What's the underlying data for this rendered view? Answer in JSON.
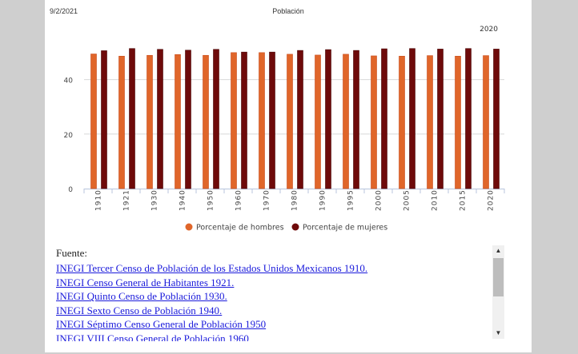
{
  "header": {
    "date": "9/2/2021",
    "title": "Población"
  },
  "chart_data": {
    "type": "bar",
    "title": "Población",
    "annotation": "2020",
    "categories": [
      "1910",
      "1921",
      "1930",
      "1940",
      "1950",
      "1960",
      "1970",
      "1980",
      "1990",
      "1995",
      "2000",
      "2005",
      "2010",
      "2015",
      "2020"
    ],
    "series": [
      {
        "name": "Porcentaje de hombres",
        "color": "#e0662a",
        "values": [
          49.4,
          48.6,
          48.9,
          49.2,
          48.9,
          49.9,
          49.9,
          49.3,
          49.0,
          49.3,
          48.7,
          48.6,
          48.8,
          48.6,
          48.8
        ]
      },
      {
        "name": "Porcentaje de mujeres",
        "color": "#6e0a0a",
        "values": [
          50.6,
          51.4,
          51.1,
          50.8,
          51.1,
          50.1,
          50.1,
          50.7,
          51.0,
          50.7,
          51.3,
          51.4,
          51.2,
          51.4,
          51.2
        ]
      }
    ],
    "yticks": [
      0,
      20,
      40
    ],
    "ylim": [
      0,
      53
    ],
    "xlabel": "",
    "ylabel": "",
    "grid": true,
    "legend": "bottom"
  },
  "sources": {
    "label": "Fuente:",
    "links": [
      "INEGI Tercer Censo de Población de los Estados Unidos Mexicanos 1910.",
      "INEGI Censo General de Habitantes 1921.",
      "INEGI Quinto Censo de Población 1930.",
      "INEGI Sexto Censo de Población 1940.",
      "INEGI Séptimo Censo General de Población 1950",
      "INEGI VIII Censo General de Población 1960"
    ]
  }
}
